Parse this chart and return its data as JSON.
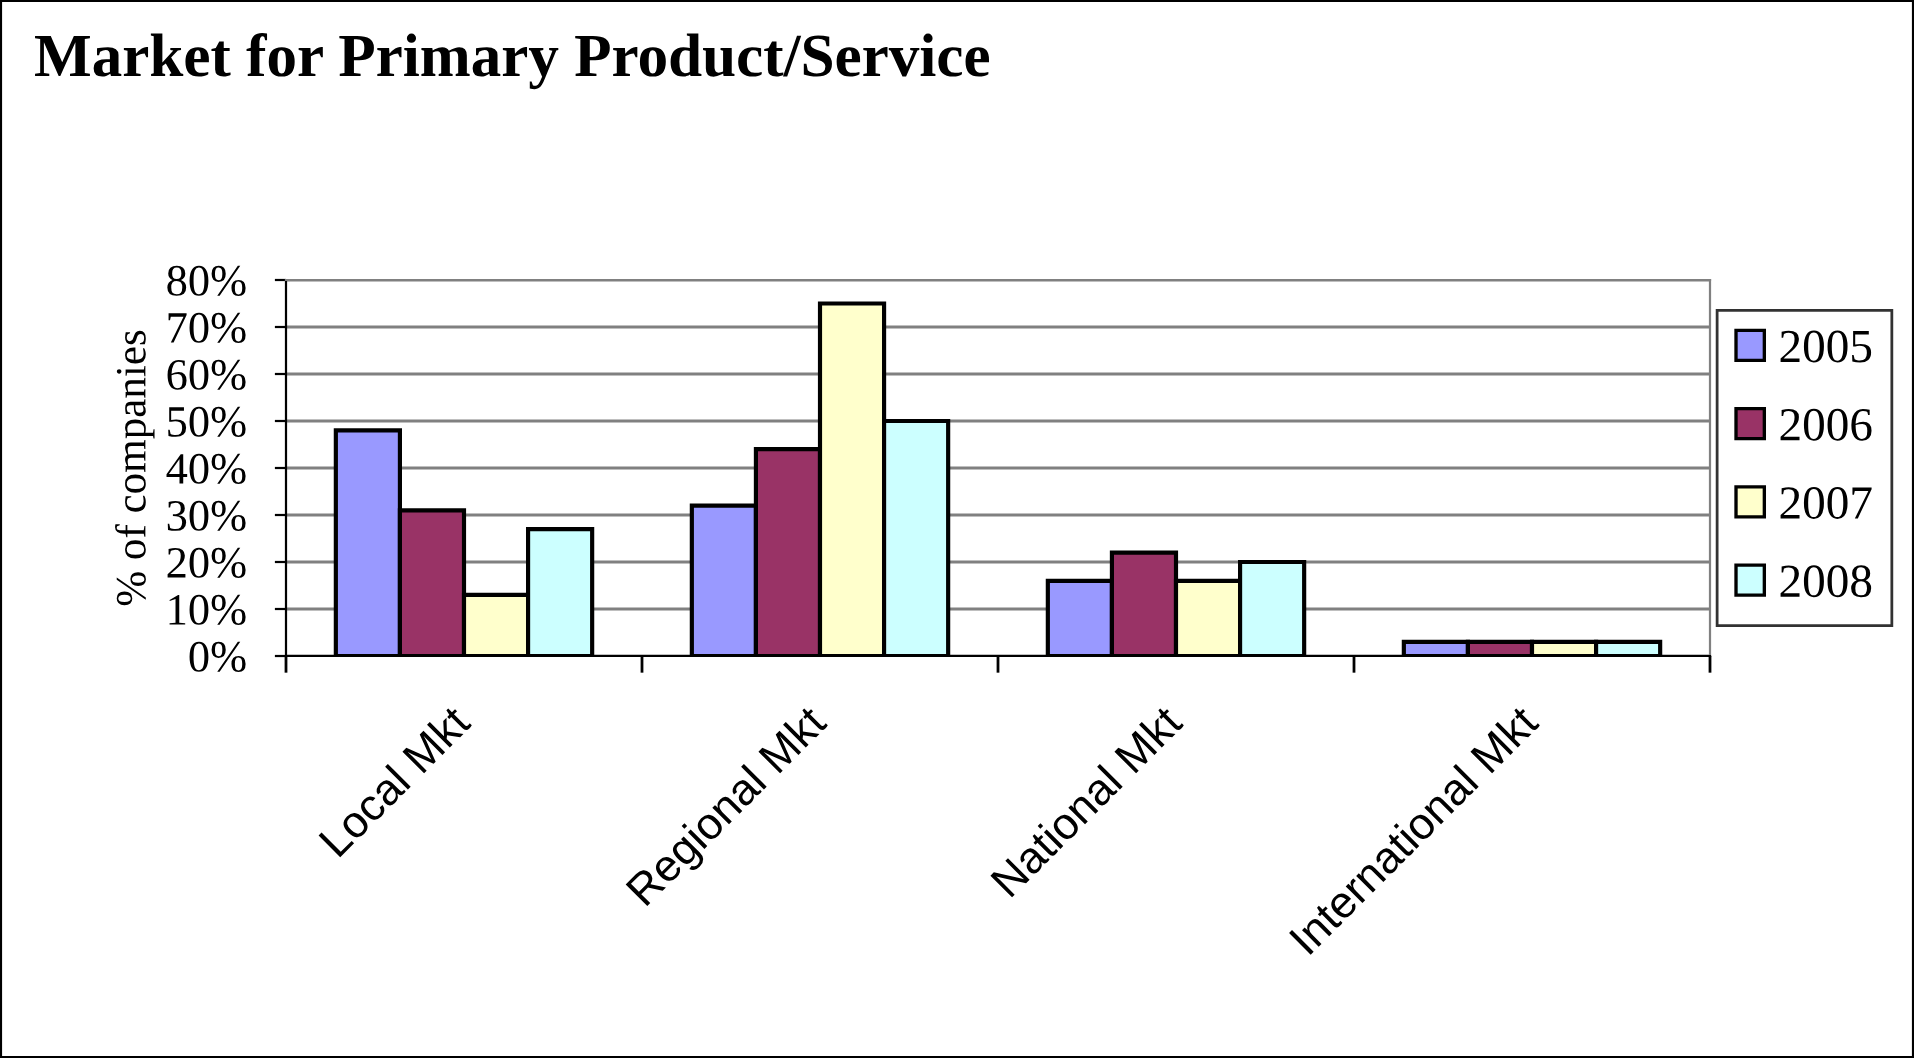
{
  "chart_data": {
    "type": "bar",
    "title": "Market for Primary Product/Service",
    "ylabel": "% of companies",
    "categories": [
      "Local Mkt",
      "Regional Mkt",
      "National Mkt",
      "International Mkt"
    ],
    "series": [
      {
        "name": "2005",
        "color": "#9999ff",
        "values": [
          48,
          32,
          16,
          3
        ]
      },
      {
        "name": "2006",
        "color": "#993366",
        "values": [
          31,
          44,
          22,
          3
        ]
      },
      {
        "name": "2007",
        "color": "#ffffcc",
        "values": [
          13,
          75,
          16,
          3
        ]
      },
      {
        "name": "2008",
        "color": "#ccffff",
        "values": [
          27,
          50,
          20,
          3
        ]
      }
    ],
    "ylim": [
      0,
      80
    ],
    "yticks": [
      {
        "value": 0,
        "label": "0%"
      },
      {
        "value": 10,
        "label": "10%"
      },
      {
        "value": 20,
        "label": "20%"
      },
      {
        "value": 30,
        "label": "30%"
      },
      {
        "value": 40,
        "label": "40%"
      },
      {
        "value": 50,
        "label": "50%"
      },
      {
        "value": 60,
        "label": "60%"
      },
      {
        "value": 70,
        "label": "70%"
      },
      {
        "value": 80,
        "label": "80%"
      }
    ],
    "grid": "y",
    "legend": "right"
  }
}
